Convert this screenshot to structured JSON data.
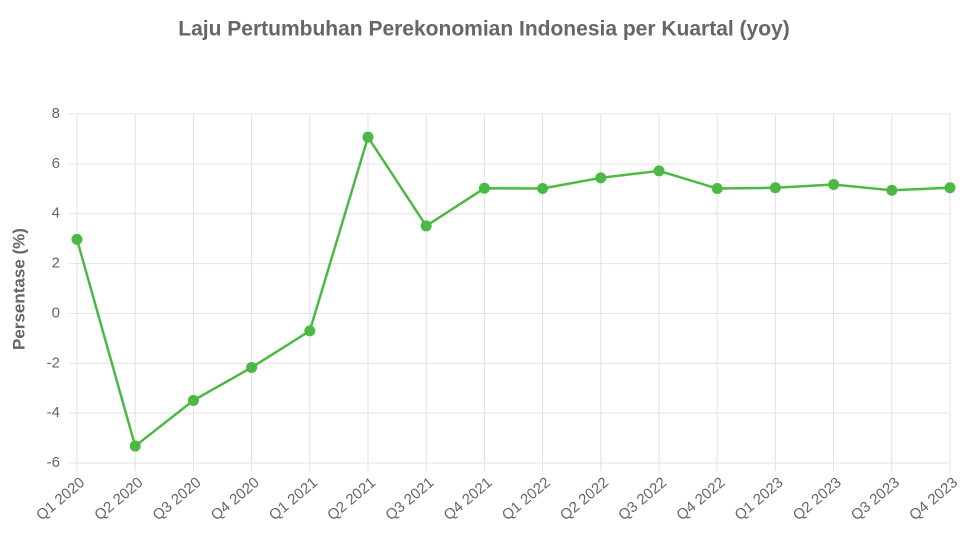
{
  "chart_data": {
    "type": "line",
    "title": "Laju Pertumbuhan Perekonomian Indonesia per Kuartal (yoy)",
    "y_label": "Persentase (%)",
    "categories": [
      "Q1 2020",
      "Q2 2020",
      "Q3 2020",
      "Q4 2020",
      "Q1 2021",
      "Q2 2021",
      "Q3 2021",
      "Q4 2021",
      "Q1 2022",
      "Q2 2022",
      "Q3 2022",
      "Q4 2022",
      "Q1 2023",
      "Q2 2023",
      "Q3 2023",
      "Q4 2023"
    ],
    "series": [
      {
        "name": "Pertumbuhan",
        "color": "#4cb944",
        "values": [
          2.97,
          -5.32,
          -3.49,
          -2.17,
          -0.7,
          7.07,
          3.51,
          5.02,
          5.01,
          5.44,
          5.72,
          5.01,
          5.04,
          5.17,
          4.94,
          5.04
        ]
      }
    ],
    "ylim": [
      -6,
      8
    ],
    "yticks": [
      -6,
      -4,
      -2,
      0,
      2,
      4,
      6,
      8
    ],
    "grid": true,
    "legend": false
  }
}
